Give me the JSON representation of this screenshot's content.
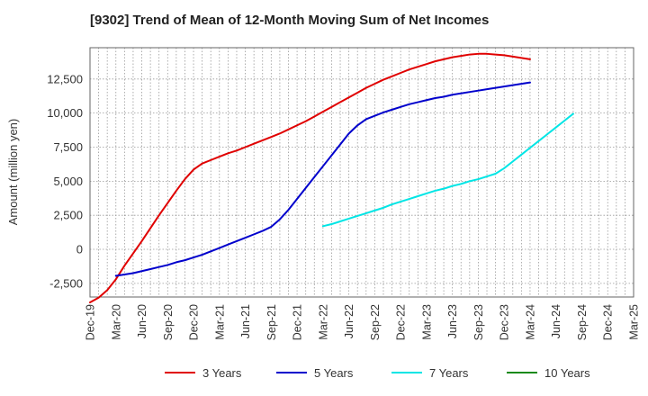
{
  "chart_data": {
    "type": "line",
    "title": "[9302]  Trend of Mean of 12-Month Moving Sum of Net Incomes",
    "xlabel": "",
    "ylabel": "Amount (million yen)",
    "ylim": [
      -3500,
      14800
    ],
    "yticks": [
      -2500,
      0,
      2500,
      5000,
      7500,
      10000,
      12500
    ],
    "ytick_labels": [
      "-2,500",
      "0",
      "2,500",
      "5,000",
      "7,500",
      "10,000",
      "12,500"
    ],
    "xticks": [
      "Dec-19",
      "Mar-20",
      "Jun-20",
      "Sep-20",
      "Dec-20",
      "Mar-21",
      "Jun-21",
      "Sep-21",
      "Dec-21",
      "Mar-22",
      "Jun-22",
      "Sep-22",
      "Dec-22",
      "Mar-23",
      "Jun-23",
      "Sep-23",
      "Dec-23",
      "Mar-24",
      "Jun-24",
      "Sep-24",
      "Dec-24",
      "Mar-25"
    ],
    "grid": true,
    "legend_position": "bottom",
    "series": [
      {
        "name": "3 Years",
        "color": "#e00000",
        "start_index": 0,
        "values": [
          -3900,
          -3550,
          -3000,
          -2200,
          -1200,
          -300,
          600,
          1550,
          2500,
          3400,
          4300,
          5150,
          5850,
          6300,
          6550,
          6800,
          7050,
          7250,
          7500,
          7750,
          8000,
          8250,
          8500,
          8800,
          9100,
          9400,
          9750,
          10100,
          10450,
          10800,
          11150,
          11500,
          11850,
          12150,
          12450,
          12700,
          12950,
          13200,
          13400,
          13600,
          13800,
          13950,
          14100,
          14200,
          14300,
          14350,
          14350,
          14300,
          14250,
          14150,
          14050,
          13950
        ]
      },
      {
        "name": "5 Years",
        "color": "#0000cc",
        "start_index": 3,
        "values": [
          -1950,
          -1850,
          -1750,
          -1600,
          -1450,
          -1300,
          -1150,
          -950,
          -800,
          -600,
          -400,
          -150,
          100,
          350,
          600,
          850,
          1100,
          1350,
          1650,
          2200,
          2900,
          3700,
          4500,
          5300,
          6100,
          6900,
          7700,
          8500,
          9100,
          9550,
          9800,
          10050,
          10250,
          10450,
          10650,
          10800,
          10950,
          11100,
          11200,
          11350,
          11450,
          11550,
          11650,
          11750,
          11850,
          11950,
          12050,
          12150,
          12250
        ]
      },
      {
        "name": "7 Years",
        "color": "#00e5e5",
        "start_index": 27,
        "values": [
          1700,
          1850,
          2050,
          2250,
          2450,
          2650,
          2850,
          3050,
          3300,
          3500,
          3700,
          3900,
          4100,
          4300,
          4450,
          4650,
          4800,
          5000,
          5150,
          5350,
          5550,
          5950,
          6450,
          6950,
          7450,
          7950,
          8450,
          8950,
          9450,
          9950
        ]
      },
      {
        "name": "10 Years",
        "color": "#1a8a1a",
        "start_index": 0,
        "values": []
      }
    ]
  }
}
